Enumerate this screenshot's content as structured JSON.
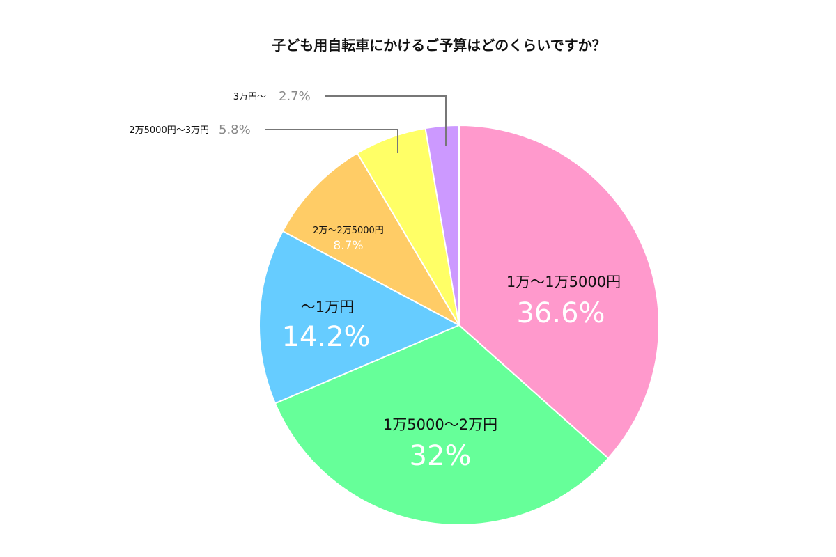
{
  "chart_data": {
    "type": "pie",
    "title": "子ども用自転車にかけるご予算はどのくらいですか？",
    "slices": [
      {
        "label": "1万〜1万5000円",
        "value": 36.6,
        "display": "36.6%",
        "color": "#ff99cc"
      },
      {
        "label": "1万5000〜2万円",
        "value": 32,
        "display": "32%",
        "color": "#66ff99"
      },
      {
        "label": "〜1万円",
        "value": 14.2,
        "display": "14.2%",
        "color": "#66ccff"
      },
      {
        "label": "2万〜2万5000円",
        "value": 8.7,
        "display": "8.7%",
        "color": "#ffcc66"
      },
      {
        "label": "2万5000円〜3万円",
        "value": 5.8,
        "display": "5.8%",
        "color": "#ffff66"
      },
      {
        "label": "3万円〜",
        "value": 2.7,
        "display": "2.7%",
        "color": "#cc99ff"
      }
    ]
  }
}
